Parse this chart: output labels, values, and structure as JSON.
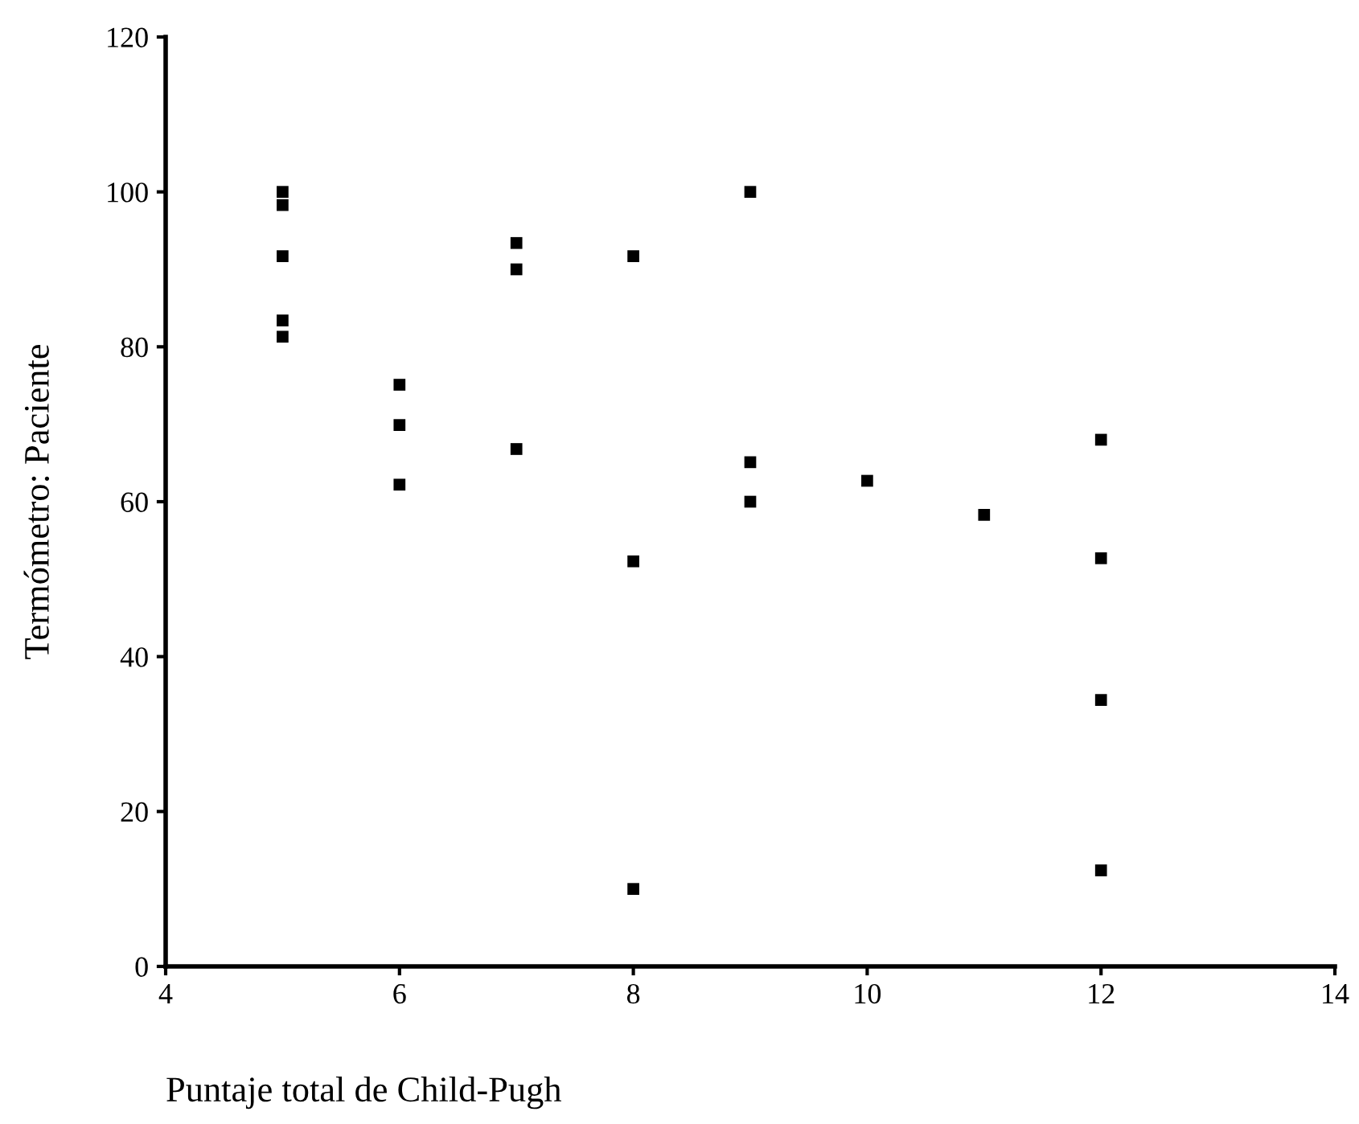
{
  "chart_data": {
    "type": "scatter",
    "xlabel": "Puntaje total de Child-Pugh",
    "ylabel": "Termómetro: Paciente",
    "series": [
      {
        "color": "#000000",
        "x": [
          5,
          5,
          5,
          5,
          5,
          6,
          6,
          6,
          7,
          7,
          7,
          8,
          8,
          8,
          9,
          9,
          9,
          10,
          11,
          12,
          12,
          12,
          12
        ],
        "values": [
          100,
          98.3,
          91.7,
          83.4,
          81.3,
          75.1,
          69.9,
          62.2,
          93.4,
          90.0,
          66.8,
          91.7,
          52.3,
          10.0,
          100,
          65.1,
          60.0,
          62.7,
          58.3,
          68.0,
          52.7,
          34.4,
          12.4
        ]
      }
    ],
    "xlim": [
      4,
      14
    ],
    "xticks": [
      4,
      6,
      8,
      10,
      12,
      14
    ],
    "ylim": [
      0,
      120
    ],
    "yticks": [
      0,
      20,
      40,
      60,
      80,
      100,
      120
    ],
    "grid": false,
    "marker": "square"
  }
}
